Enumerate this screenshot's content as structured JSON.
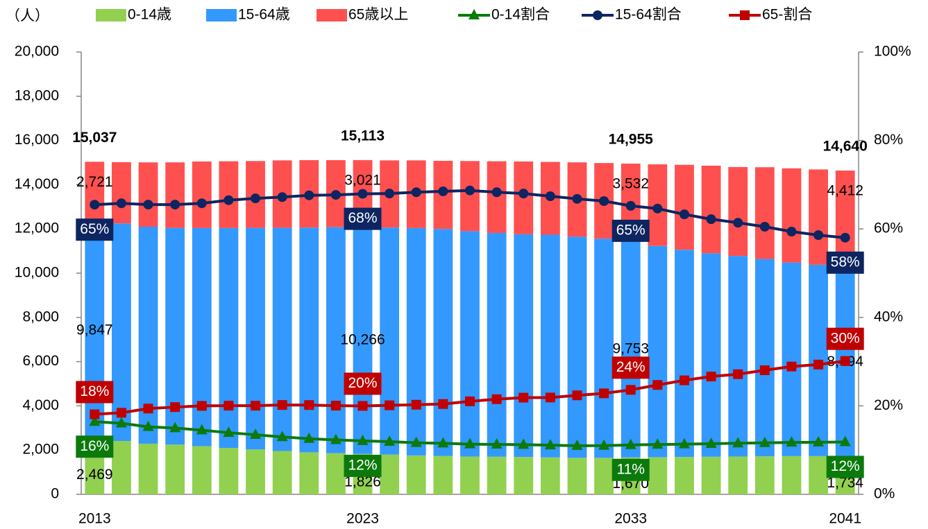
{
  "chart_data": {
    "type": "bar",
    "stacked": true,
    "unit_label": "（人）",
    "categories": [
      "2013",
      null,
      null,
      null,
      null,
      null,
      null,
      null,
      null,
      null,
      "2023",
      null,
      null,
      null,
      null,
      null,
      null,
      null,
      null,
      null,
      "2033",
      null,
      null,
      null,
      null,
      null,
      null,
      null,
      "2041"
    ],
    "series": [
      {
        "name": "0-14歳",
        "type": "bar",
        "color": "#92d050",
        "values": [
          2469,
          2414,
          2290,
          2250,
          2180,
          2100,
          2030,
          1960,
          1900,
          1860,
          1826,
          1800,
          1760,
          1740,
          1710,
          1700,
          1690,
          1670,
          1650,
          1650,
          1670,
          1680,
          1690,
          1700,
          1710,
          1720,
          1730,
          1730,
          1734
        ],
        "value_labels": [
          "2,469",
          null,
          null,
          null,
          null,
          null,
          null,
          null,
          null,
          null,
          "1,826",
          null,
          null,
          null,
          null,
          null,
          null,
          null,
          null,
          null,
          "1,670",
          null,
          null,
          null,
          null,
          null,
          null,
          null,
          "1,734"
        ]
      },
      {
        "name": "15-64歳",
        "type": "bar",
        "color": "#3399ff",
        "values": [
          9847,
          9836,
          9810,
          9800,
          9860,
          9940,
          10020,
          10090,
          10160,
          10220,
          10266,
          10260,
          10280,
          10260,
          10190,
          10120,
          10070,
          10070,
          10000,
          9910,
          9753,
          9550,
          9370,
          9200,
          9070,
          8920,
          8750,
          8650,
          8494
        ],
        "value_labels": [
          "9,847",
          null,
          null,
          null,
          null,
          null,
          null,
          null,
          null,
          null,
          "10,266",
          null,
          null,
          null,
          null,
          null,
          null,
          null,
          null,
          null,
          "9,753",
          null,
          null,
          null,
          null,
          null,
          null,
          null,
          "8,494"
        ]
      },
      {
        "name": "65歳以上",
        "type": "bar",
        "color": "#ff5050",
        "values": [
          2721,
          2770,
          2910,
          2960,
          3010,
          3020,
          3020,
          3050,
          3050,
          3030,
          3021,
          3040,
          3060,
          3080,
          3170,
          3240,
          3290,
          3290,
          3360,
          3420,
          3532,
          3690,
          3840,
          3960,
          4020,
          4150,
          4260,
          4310,
          4412
        ],
        "value_labels": [
          "2,721",
          null,
          null,
          null,
          null,
          null,
          null,
          null,
          null,
          null,
          "3,021",
          null,
          null,
          null,
          null,
          null,
          null,
          null,
          null,
          null,
          "3,532",
          null,
          null,
          null,
          null,
          null,
          null,
          null,
          "4,412"
        ]
      },
      {
        "name": "0-14割合",
        "type": "line",
        "axis": "y2",
        "marker": "triangle",
        "color": "#0b7a0b",
        "values": [
          16.42,
          16.07,
          15.26,
          14.99,
          14.49,
          13.94,
          13.47,
          12.98,
          12.57,
          12.31,
          12.08,
          11.92,
          11.66,
          11.54,
          11.35,
          11.29,
          11.23,
          11.11,
          10.99,
          11.01,
          11.17,
          11.26,
          11.34,
          11.44,
          11.55,
          11.63,
          11.74,
          11.78,
          11.84
        ],
        "value_labels": [
          "16%",
          null,
          null,
          null,
          null,
          null,
          null,
          null,
          null,
          null,
          "12%",
          null,
          null,
          null,
          null,
          null,
          null,
          null,
          null,
          null,
          "11%",
          null,
          null,
          null,
          null,
          null,
          null,
          null,
          "12%"
        ]
      },
      {
        "name": "15-64割合",
        "type": "line",
        "axis": "y2",
        "marker": "circle",
        "color": "#0d2560",
        "values": [
          65.48,
          65.8,
          65.5,
          65.5,
          65.8,
          66.5,
          66.9,
          67.2,
          67.6,
          67.7,
          67.93,
          68.0,
          68.3,
          68.5,
          68.7,
          68.3,
          68.0,
          67.4,
          66.8,
          66.3,
          65.22,
          64.6,
          63.3,
          62.2,
          61.4,
          60.5,
          59.4,
          58.6,
          58.02
        ],
        "value_labels": [
          "65%",
          null,
          null,
          null,
          null,
          null,
          null,
          null,
          null,
          null,
          "68%",
          null,
          null,
          null,
          null,
          null,
          null,
          null,
          null,
          null,
          "65%",
          null,
          null,
          null,
          null,
          null,
          null,
          null,
          "58%"
        ]
      },
      {
        "name": "65-割合",
        "type": "line",
        "axis": "y2",
        "marker": "square",
        "color": "#c00000",
        "values": [
          18.1,
          18.44,
          19.39,
          19.72,
          20.0,
          20.05,
          20.04,
          20.2,
          20.19,
          20.05,
          19.99,
          20.13,
          20.26,
          20.42,
          21.03,
          21.51,
          21.86,
          21.89,
          22.38,
          22.83,
          23.62,
          24.73,
          25.77,
          26.64,
          27.16,
          28.06,
          28.9,
          29.34,
          30.14
        ],
        "value_labels": [
          "18%",
          null,
          null,
          null,
          null,
          null,
          null,
          null,
          null,
          null,
          "20%",
          null,
          null,
          null,
          null,
          null,
          null,
          null,
          null,
          null,
          "24%",
          null,
          null,
          null,
          null,
          null,
          null,
          null,
          "30%"
        ]
      }
    ],
    "totals": {
      "values": [
        15037,
        null,
        null,
        null,
        null,
        null,
        null,
        null,
        null,
        null,
        15113,
        null,
        null,
        null,
        null,
        null,
        null,
        null,
        null,
        null,
        14955,
        null,
        null,
        null,
        null,
        null,
        null,
        null,
        14640
      ],
      "value_labels": [
        "15,037",
        null,
        null,
        null,
        null,
        null,
        null,
        null,
        null,
        null,
        "15,113",
        null,
        null,
        null,
        null,
        null,
        null,
        null,
        null,
        null,
        "14,955",
        null,
        null,
        null,
        null,
        null,
        null,
        null,
        "14,640"
      ]
    },
    "ylim": [
      0,
      20000
    ],
    "yticks": [
      0,
      {
        "value": 2000,
        "label": "2,000"
      },
      {
        "value": 4000,
        "label": "4,000"
      },
      {
        "value": 6000,
        "label": "6,000"
      },
      {
        "value": 8000,
        "label": "8,000"
      },
      {
        "value": 10000,
        "label": "10,000"
      },
      {
        "value": 12000,
        "label": "12,000"
      },
      {
        "value": 14000,
        "label": "14,000"
      },
      {
        "value": 16000,
        "label": "16,000"
      },
      {
        "value": 18000,
        "label": "18,000"
      },
      {
        "value": 20000,
        "label": "20,000"
      }
    ],
    "y2lim": [
      0,
      100
    ],
    "y2ticks": [
      {
        "value": 0,
        "label": "0%"
      },
      {
        "value": 20,
        "label": "20%"
      },
      {
        "value": 40,
        "label": "40%"
      },
      {
        "value": 60,
        "label": "60%"
      },
      {
        "value": 80,
        "label": "80%"
      },
      {
        "value": 100,
        "label": "100%"
      }
    ],
    "grid": false
  }
}
